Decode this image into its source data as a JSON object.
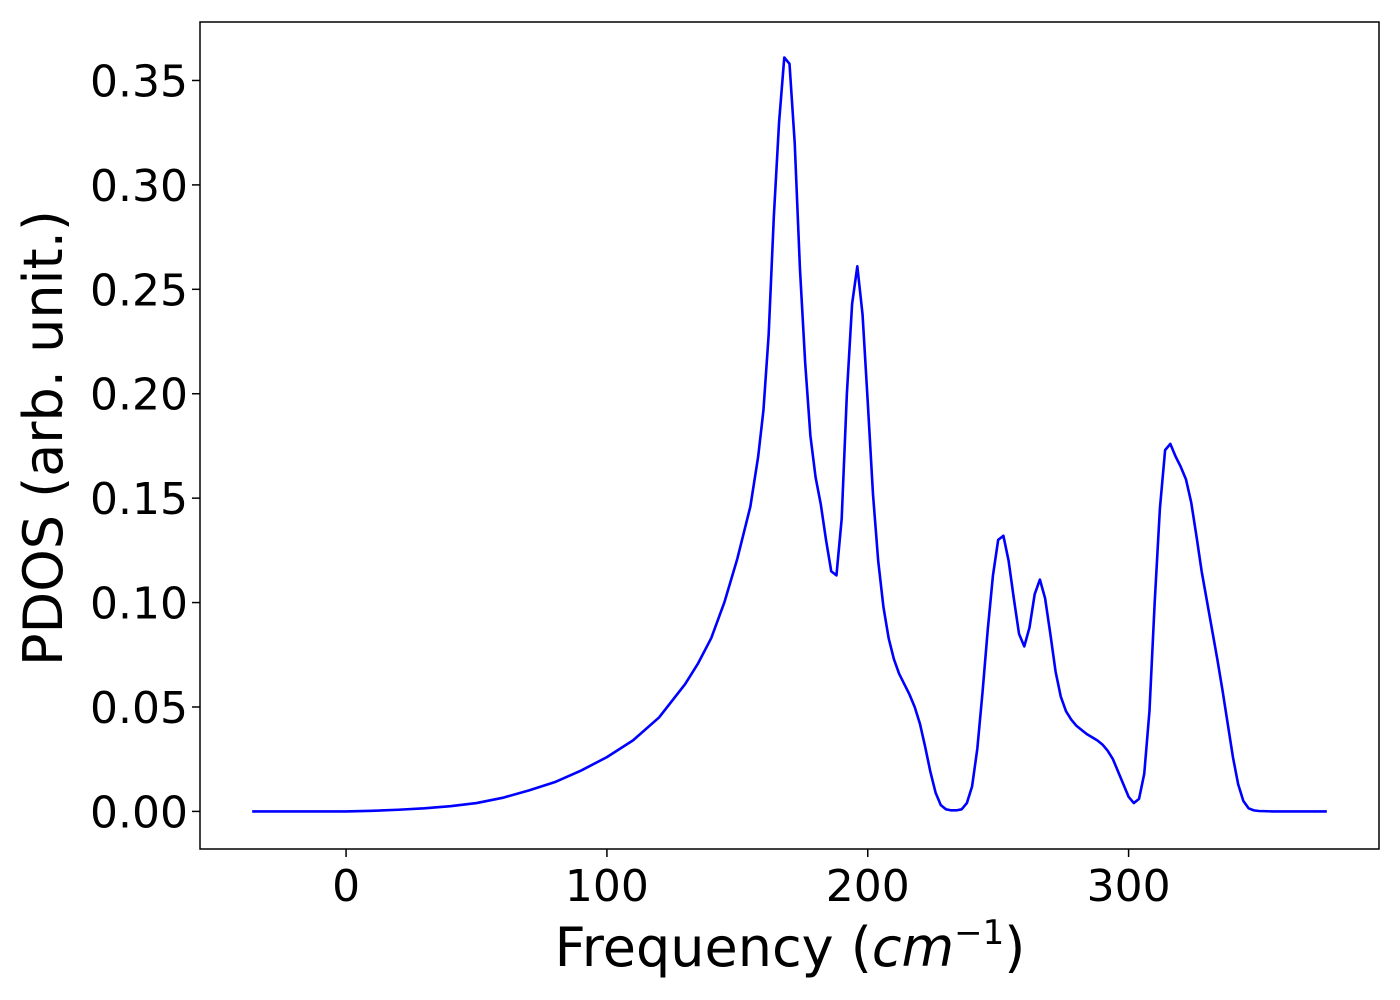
{
  "chart_data": {
    "type": "line",
    "title": "",
    "xlabel": "Frequency",
    "xlabel_unit_base": "cm",
    "xlabel_unit_exp": "−1",
    "ylabel": "PDOS (arb. unit.)",
    "xlim": [
      -56,
      396
    ],
    "ylim": [
      -0.018,
      0.378
    ],
    "xticks": [
      0,
      100,
      200,
      300
    ],
    "xtick_labels": [
      "0",
      "100",
      "200",
      "300"
    ],
    "yticks": [
      0.0,
      0.05,
      0.1,
      0.15,
      0.2,
      0.25,
      0.3,
      0.35
    ],
    "ytick_labels": [
      "0.00",
      "0.05",
      "0.10",
      "0.15",
      "0.20",
      "0.25",
      "0.30",
      "0.35"
    ],
    "grid": false,
    "line_color": "#0000ff",
    "series": [
      {
        "x": [
          -36,
          0,
          10,
          20,
          30,
          40,
          50,
          60,
          70,
          80,
          90,
          100,
          110,
          120,
          130,
          135,
          140,
          145,
          150,
          155,
          158,
          160,
          162,
          164,
          166,
          168,
          170,
          172,
          174,
          176,
          178,
          180,
          182,
          184,
          186,
          188,
          190,
          192,
          194,
          196,
          198,
          200,
          202,
          204,
          206,
          208,
          210,
          212,
          214,
          216,
          218,
          220,
          222,
          224,
          226,
          228,
          230,
          232,
          234,
          236,
          238,
          240,
          242,
          244,
          246,
          248,
          250,
          252,
          254,
          256,
          258,
          260,
          262,
          264,
          266,
          268,
          270,
          272,
          274,
          276,
          278,
          280,
          282,
          284,
          286,
          288,
          290,
          292,
          294,
          296,
          298,
          300,
          302,
          304,
          306,
          308,
          310,
          312,
          314,
          316,
          318,
          320,
          322,
          324,
          326,
          328,
          330,
          332,
          334,
          336,
          338,
          340,
          342,
          344,
          346,
          348,
          350,
          355,
          360,
          365,
          370,
          376
        ],
        "y": [
          0.0,
          0.0,
          0.0003,
          0.0008,
          0.0015,
          0.0025,
          0.004,
          0.0065,
          0.01,
          0.014,
          0.0195,
          0.026,
          0.034,
          0.045,
          0.061,
          0.071,
          0.083,
          0.1,
          0.121,
          0.146,
          0.17,
          0.192,
          0.228,
          0.285,
          0.33,
          0.361,
          0.358,
          0.32,
          0.26,
          0.215,
          0.18,
          0.16,
          0.147,
          0.13,
          0.115,
          0.113,
          0.14,
          0.2,
          0.243,
          0.261,
          0.238,
          0.196,
          0.152,
          0.12,
          0.098,
          0.083,
          0.073,
          0.066,
          0.061,
          0.056,
          0.05,
          0.042,
          0.031,
          0.019,
          0.009,
          0.003,
          0.001,
          0.0005,
          0.0005,
          0.001,
          0.004,
          0.012,
          0.03,
          0.057,
          0.087,
          0.113,
          0.13,
          0.132,
          0.12,
          0.102,
          0.085,
          0.079,
          0.088,
          0.104,
          0.111,
          0.102,
          0.085,
          0.067,
          0.055,
          0.048,
          0.044,
          0.041,
          0.039,
          0.037,
          0.0355,
          0.034,
          0.032,
          0.029,
          0.025,
          0.019,
          0.013,
          0.007,
          0.004,
          0.006,
          0.018,
          0.048,
          0.1,
          0.145,
          0.173,
          0.176,
          0.17,
          0.165,
          0.159,
          0.148,
          0.132,
          0.115,
          0.101,
          0.087,
          0.073,
          0.058,
          0.042,
          0.026,
          0.013,
          0.005,
          0.0015,
          0.0005,
          0.0002,
          0.0,
          0.0,
          0.0,
          0.0,
          0.0
        ]
      }
    ]
  }
}
